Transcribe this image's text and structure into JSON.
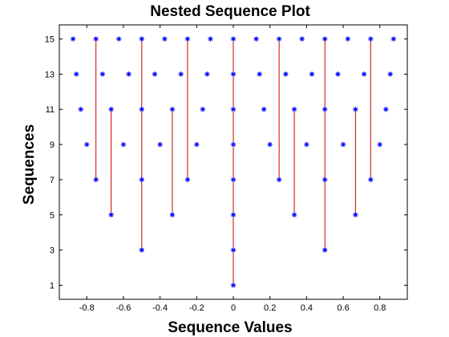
{
  "chart_data": {
    "type": "scatter",
    "title": "Nested Sequence Plot",
    "xlabel": "Sequence Values",
    "ylabel": "Sequences",
    "xlim": [
      -0.95,
      0.95
    ],
    "ylim": [
      0.2,
      15.8
    ],
    "grid": false,
    "xticks": [
      -0.8,
      -0.6,
      -0.4,
      -0.2,
      0,
      0.2,
      0.4,
      0.6,
      0.8
    ],
    "xtick_labels": [
      "-0.8",
      "-0.6",
      "-0.4",
      "-0.2",
      "0",
      "0.2",
      "0.4",
      "0.6",
      "0.8"
    ],
    "yticks": [
      1,
      3,
      5,
      7,
      9,
      11,
      13,
      15
    ],
    "ytick_labels": [
      "1",
      "3",
      "5",
      "7",
      "9",
      "11",
      "13",
      "15"
    ],
    "marker": "asterisk",
    "marker_color": "#0000ff",
    "line_color": "#cc0000",
    "series": [
      {
        "y": 15,
        "x": [
          -0.875,
          -0.75,
          -0.625,
          -0.5,
          -0.375,
          -0.25,
          -0.125,
          0,
          0.125,
          0.25,
          0.375,
          0.5,
          0.625,
          0.75,
          0.875
        ]
      },
      {
        "y": 13,
        "x": [
          -0.857,
          -0.714,
          -0.571,
          -0.429,
          -0.286,
          -0.143,
          0,
          0.143,
          0.286,
          0.429,
          0.571,
          0.714,
          0.857
        ]
      },
      {
        "y": 11,
        "x": [
          -0.833,
          -0.667,
          -0.5,
          -0.333,
          -0.167,
          0,
          0.167,
          0.333,
          0.5,
          0.667,
          0.833
        ]
      },
      {
        "y": 9,
        "x": [
          -0.8,
          -0.6,
          -0.4,
          -0.2,
          0,
          0.2,
          0.4,
          0.6,
          0.8
        ]
      },
      {
        "y": 7,
        "x": [
          -0.75,
          -0.5,
          -0.25,
          0,
          0.25,
          0.5,
          0.75
        ]
      },
      {
        "y": 5,
        "x": [
          -0.667,
          -0.333,
          0,
          0.333,
          0.667
        ]
      },
      {
        "y": 3,
        "x": [
          -0.5,
          0,
          0.5
        ]
      },
      {
        "y": 1,
        "x": [
          0
        ]
      }
    ],
    "connector_lines": [
      {
        "x": -0.75,
        "y_from": 7,
        "y_to": 15
      },
      {
        "x": -0.667,
        "y_from": 5,
        "y_to": 11
      },
      {
        "x": -0.5,
        "y_from": 3,
        "y_to": 15
      },
      {
        "x": -0.333,
        "y_from": 5,
        "y_to": 11
      },
      {
        "x": -0.25,
        "y_from": 7,
        "y_to": 15
      },
      {
        "x": 0,
        "y_from": 1,
        "y_to": 15
      },
      {
        "x": 0.25,
        "y_from": 7,
        "y_to": 15
      },
      {
        "x": 0.333,
        "y_from": 5,
        "y_to": 11
      },
      {
        "x": 0.5,
        "y_from": 3,
        "y_to": 15
      },
      {
        "x": 0.667,
        "y_from": 5,
        "y_to": 11
      },
      {
        "x": 0.75,
        "y_from": 7,
        "y_to": 15
      }
    ]
  }
}
